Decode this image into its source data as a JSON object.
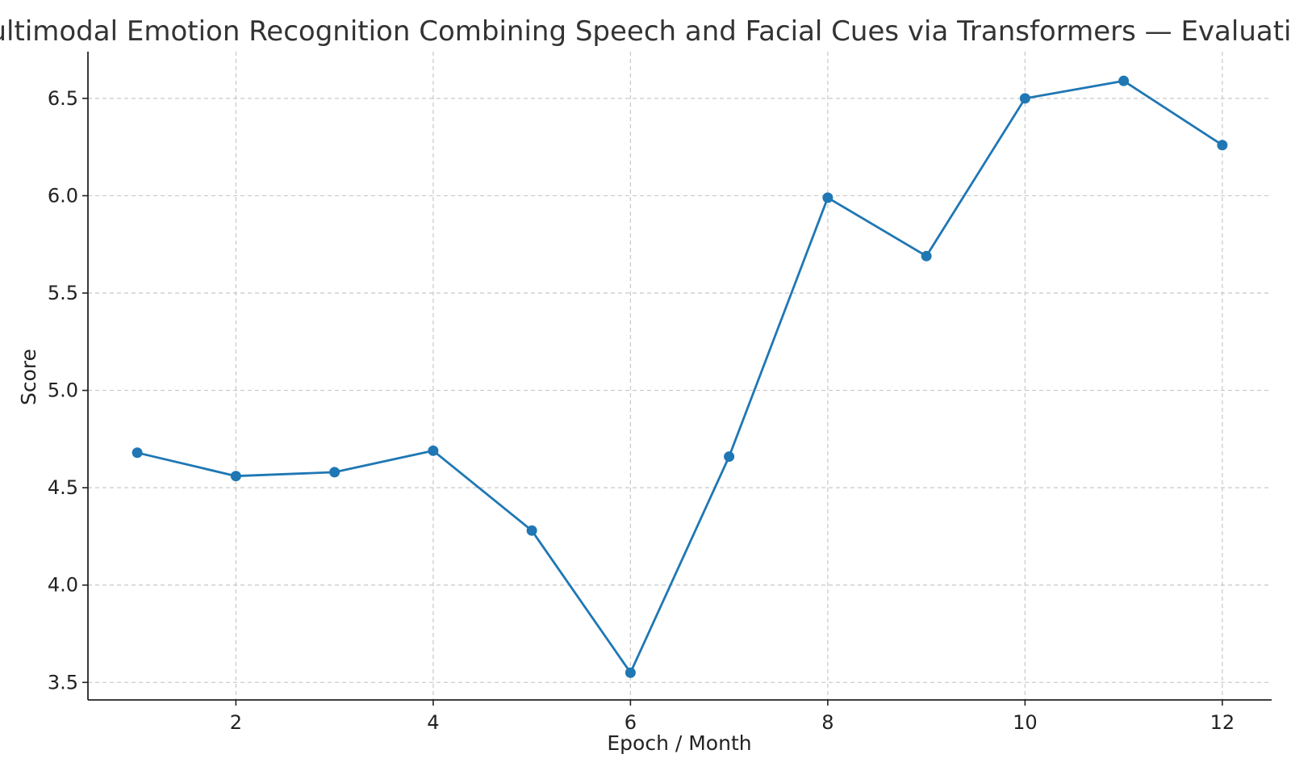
{
  "chart_data": {
    "type": "line",
    "title": "Multimodal Emotion Recognition Combining Speech and Facial Cues via Transformers — Evaluation",
    "xlabel": "Epoch / Month",
    "ylabel": "Score",
    "x": [
      1,
      2,
      3,
      4,
      5,
      6,
      7,
      8,
      9,
      10,
      11,
      12
    ],
    "series": [
      {
        "values": [
          4.68,
          4.56,
          4.58,
          4.69,
          4.28,
          3.55,
          4.66,
          5.99,
          5.69,
          6.5,
          6.59,
          6.26
        ]
      }
    ],
    "xlim": [
      0.5,
      12.5
    ],
    "ylim": [
      3.41,
      6.74
    ],
    "xticks": [
      2,
      4,
      6,
      8,
      10,
      12
    ],
    "yticks": [
      3.5,
      4.0,
      4.5,
      5.0,
      5.5,
      6.0,
      6.5
    ],
    "ytick_labels": [
      "3.5",
      "4.0",
      "4.5",
      "5.0",
      "5.5",
      "6.0",
      "6.5"
    ],
    "grid": true,
    "marker": "circle",
    "line_color": "#1f77b4"
  }
}
